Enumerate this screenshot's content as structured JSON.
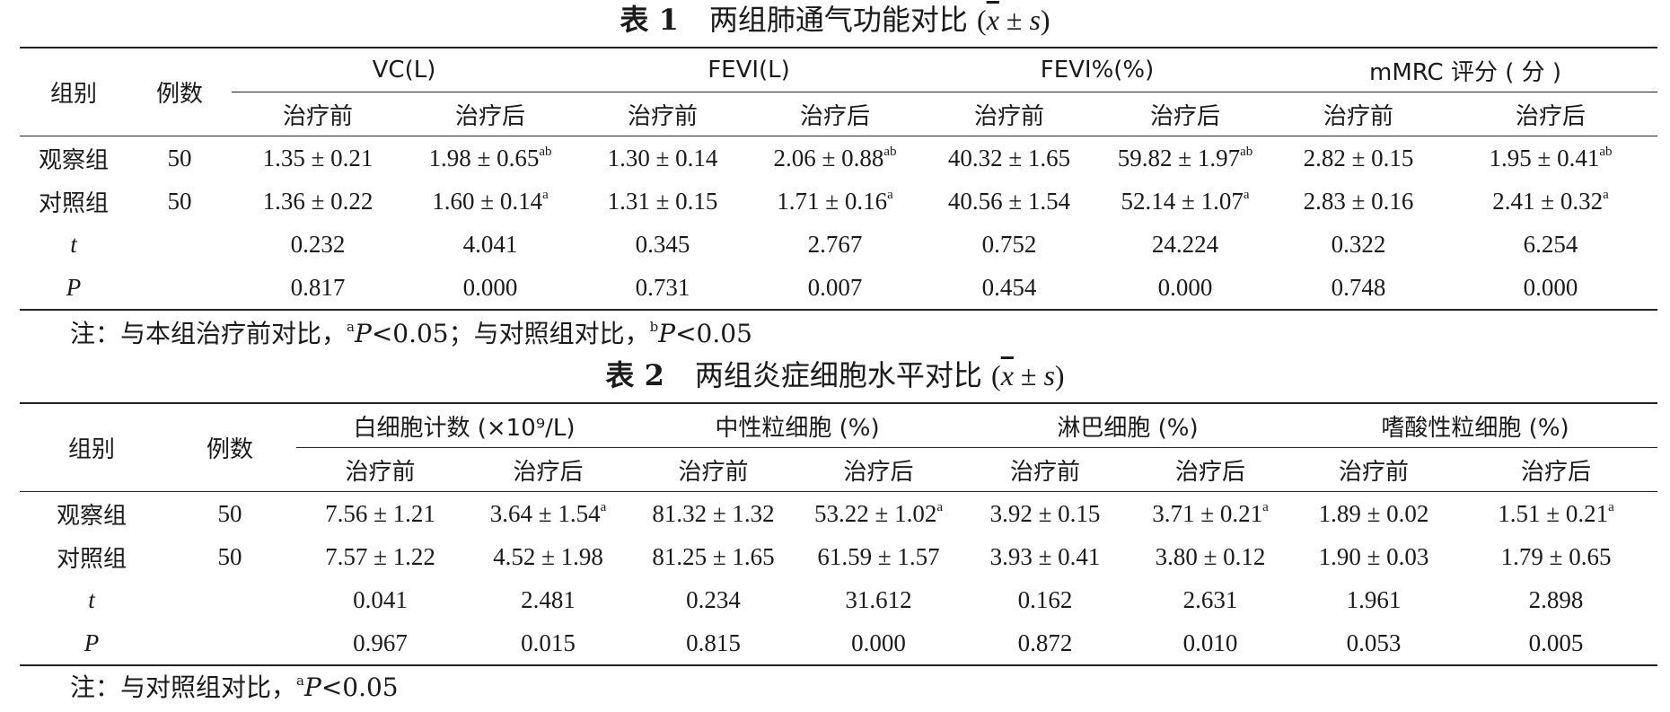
{
  "table1": {
    "caption_num": "表 1",
    "caption_text": "两组肺通气功能对比",
    "caption_stat_open": "(",
    "caption_stat_x": "x",
    "caption_stat_pm": " ± ",
    "caption_stat_s": "s",
    "caption_stat_close": ")",
    "col_group": "组别",
    "col_cases": "例数",
    "groups": [
      "VC(L)",
      "FEVI(L)",
      "FEVI%(%)",
      "mMRC 评分 ( 分 )"
    ],
    "sub_before": "治疗前",
    "sub_after": "治疗后",
    "rows": [
      {
        "label": "观察组",
        "n": "50",
        "cells": [
          {
            "v": "1.35 ± 0.21",
            "sup": ""
          },
          {
            "v": "1.98 ± 0.65",
            "sup": "ab"
          },
          {
            "v": "1.30 ± 0.14",
            "sup": ""
          },
          {
            "v": "2.06 ± 0.88",
            "sup": "ab"
          },
          {
            "v": "40.32 ± 1.65",
            "sup": ""
          },
          {
            "v": "59.82 ± 1.97",
            "sup": "ab"
          },
          {
            "v": "2.82 ± 0.15",
            "sup": ""
          },
          {
            "v": "1.95 ± 0.41",
            "sup": "ab"
          }
        ]
      },
      {
        "label": "对照组",
        "n": "50",
        "cells": [
          {
            "v": "1.36 ± 0.22",
            "sup": ""
          },
          {
            "v": "1.60 ± 0.14",
            "sup": "a"
          },
          {
            "v": "1.31 ± 0.15",
            "sup": ""
          },
          {
            "v": "1.71 ± 0.16",
            "sup": "a"
          },
          {
            "v": "40.56 ± 1.54",
            "sup": ""
          },
          {
            "v": "52.14 ± 1.07",
            "sup": "a"
          },
          {
            "v": "2.83 ± 0.16",
            "sup": ""
          },
          {
            "v": "2.41 ± 0.32",
            "sup": "a"
          }
        ]
      },
      {
        "label": "t",
        "italic": true,
        "n": "",
        "cells": [
          {
            "v": "0.232",
            "sup": ""
          },
          {
            "v": "4.041",
            "sup": ""
          },
          {
            "v": "0.345",
            "sup": ""
          },
          {
            "v": "2.767",
            "sup": ""
          },
          {
            "v": "0.752",
            "sup": ""
          },
          {
            "v": "24.224",
            "sup": ""
          },
          {
            "v": "0.322",
            "sup": ""
          },
          {
            "v": "6.254",
            "sup": ""
          }
        ]
      },
      {
        "label": "P",
        "italic": true,
        "n": "",
        "cells": [
          {
            "v": "0.817",
            "sup": ""
          },
          {
            "v": "0.000",
            "sup": ""
          },
          {
            "v": "0.731",
            "sup": ""
          },
          {
            "v": "0.007",
            "sup": ""
          },
          {
            "v": "0.454",
            "sup": ""
          },
          {
            "v": "0.000",
            "sup": ""
          },
          {
            "v": "0.748",
            "sup": ""
          },
          {
            "v": "0.000",
            "sup": ""
          }
        ]
      }
    ],
    "note_prefix": "注：与本组治疗前对比，",
    "note_sup_a": "a",
    "note_p1": "P",
    "note_lt1": "<0.05；与对照组对比，",
    "note_sup_b": "b",
    "note_p2": "P",
    "note_lt2": "<0.05"
  },
  "table2": {
    "caption_num": "表 2",
    "caption_text": "两组炎症细胞水平对比",
    "caption_stat_open": "(",
    "caption_stat_x": "x",
    "caption_stat_pm": " ± ",
    "caption_stat_s": "s",
    "caption_stat_close": ")",
    "col_group": "组别",
    "col_cases": "例数",
    "groups": [
      "白细胞计数 (×10⁹/L)",
      "中性粒细胞 (%)",
      "淋巴细胞 (%)",
      "嗜酸性粒细胞 (%)"
    ],
    "sub_before": "治疗前",
    "sub_after": "治疗后",
    "rows": [
      {
        "label": "观察组",
        "n": "50",
        "cells": [
          {
            "v": "7.56 ± 1.21",
            "sup": ""
          },
          {
            "v": "3.64 ± 1.54",
            "sup": "a"
          },
          {
            "v": "81.32 ± 1.32",
            "sup": ""
          },
          {
            "v": "53.22 ± 1.02",
            "sup": "a"
          },
          {
            "v": "3.92 ± 0.15",
            "sup": ""
          },
          {
            "v": "3.71 ± 0.21",
            "sup": "a"
          },
          {
            "v": "1.89 ± 0.02",
            "sup": ""
          },
          {
            "v": "1.51 ± 0.21",
            "sup": "a"
          }
        ]
      },
      {
        "label": "对照组",
        "n": "50",
        "cells": [
          {
            "v": "7.57 ± 1.22",
            "sup": ""
          },
          {
            "v": "4.52 ± 1.98",
            "sup": ""
          },
          {
            "v": "81.25 ± 1.65",
            "sup": ""
          },
          {
            "v": "61.59 ± 1.57",
            "sup": ""
          },
          {
            "v": "3.93 ± 0.41",
            "sup": ""
          },
          {
            "v": "3.80 ± 0.12",
            "sup": ""
          },
          {
            "v": "1.90 ± 0.03",
            "sup": ""
          },
          {
            "v": "1.79 ± 0.65",
            "sup": ""
          }
        ]
      },
      {
        "label": "t",
        "italic": true,
        "n": "",
        "cells": [
          {
            "v": "0.041",
            "sup": ""
          },
          {
            "v": "2.481",
            "sup": ""
          },
          {
            "v": "0.234",
            "sup": ""
          },
          {
            "v": "31.612",
            "sup": ""
          },
          {
            "v": "0.162",
            "sup": ""
          },
          {
            "v": "2.631",
            "sup": ""
          },
          {
            "v": "1.961",
            "sup": ""
          },
          {
            "v": "2.898",
            "sup": ""
          }
        ]
      },
      {
        "label": "P",
        "italic": true,
        "n": "",
        "cells": [
          {
            "v": "0.967",
            "sup": ""
          },
          {
            "v": "0.015",
            "sup": ""
          },
          {
            "v": "0.815",
            "sup": ""
          },
          {
            "v": "0.000",
            "sup": ""
          },
          {
            "v": "0.872",
            "sup": ""
          },
          {
            "v": "0.010",
            "sup": ""
          },
          {
            "v": "0.053",
            "sup": ""
          },
          {
            "v": "0.005",
            "sup": ""
          }
        ]
      }
    ],
    "note_prefix": "注：与对照组对比，",
    "note_sup_a": "a",
    "note_p1": "P",
    "note_lt1": "<0.05"
  }
}
